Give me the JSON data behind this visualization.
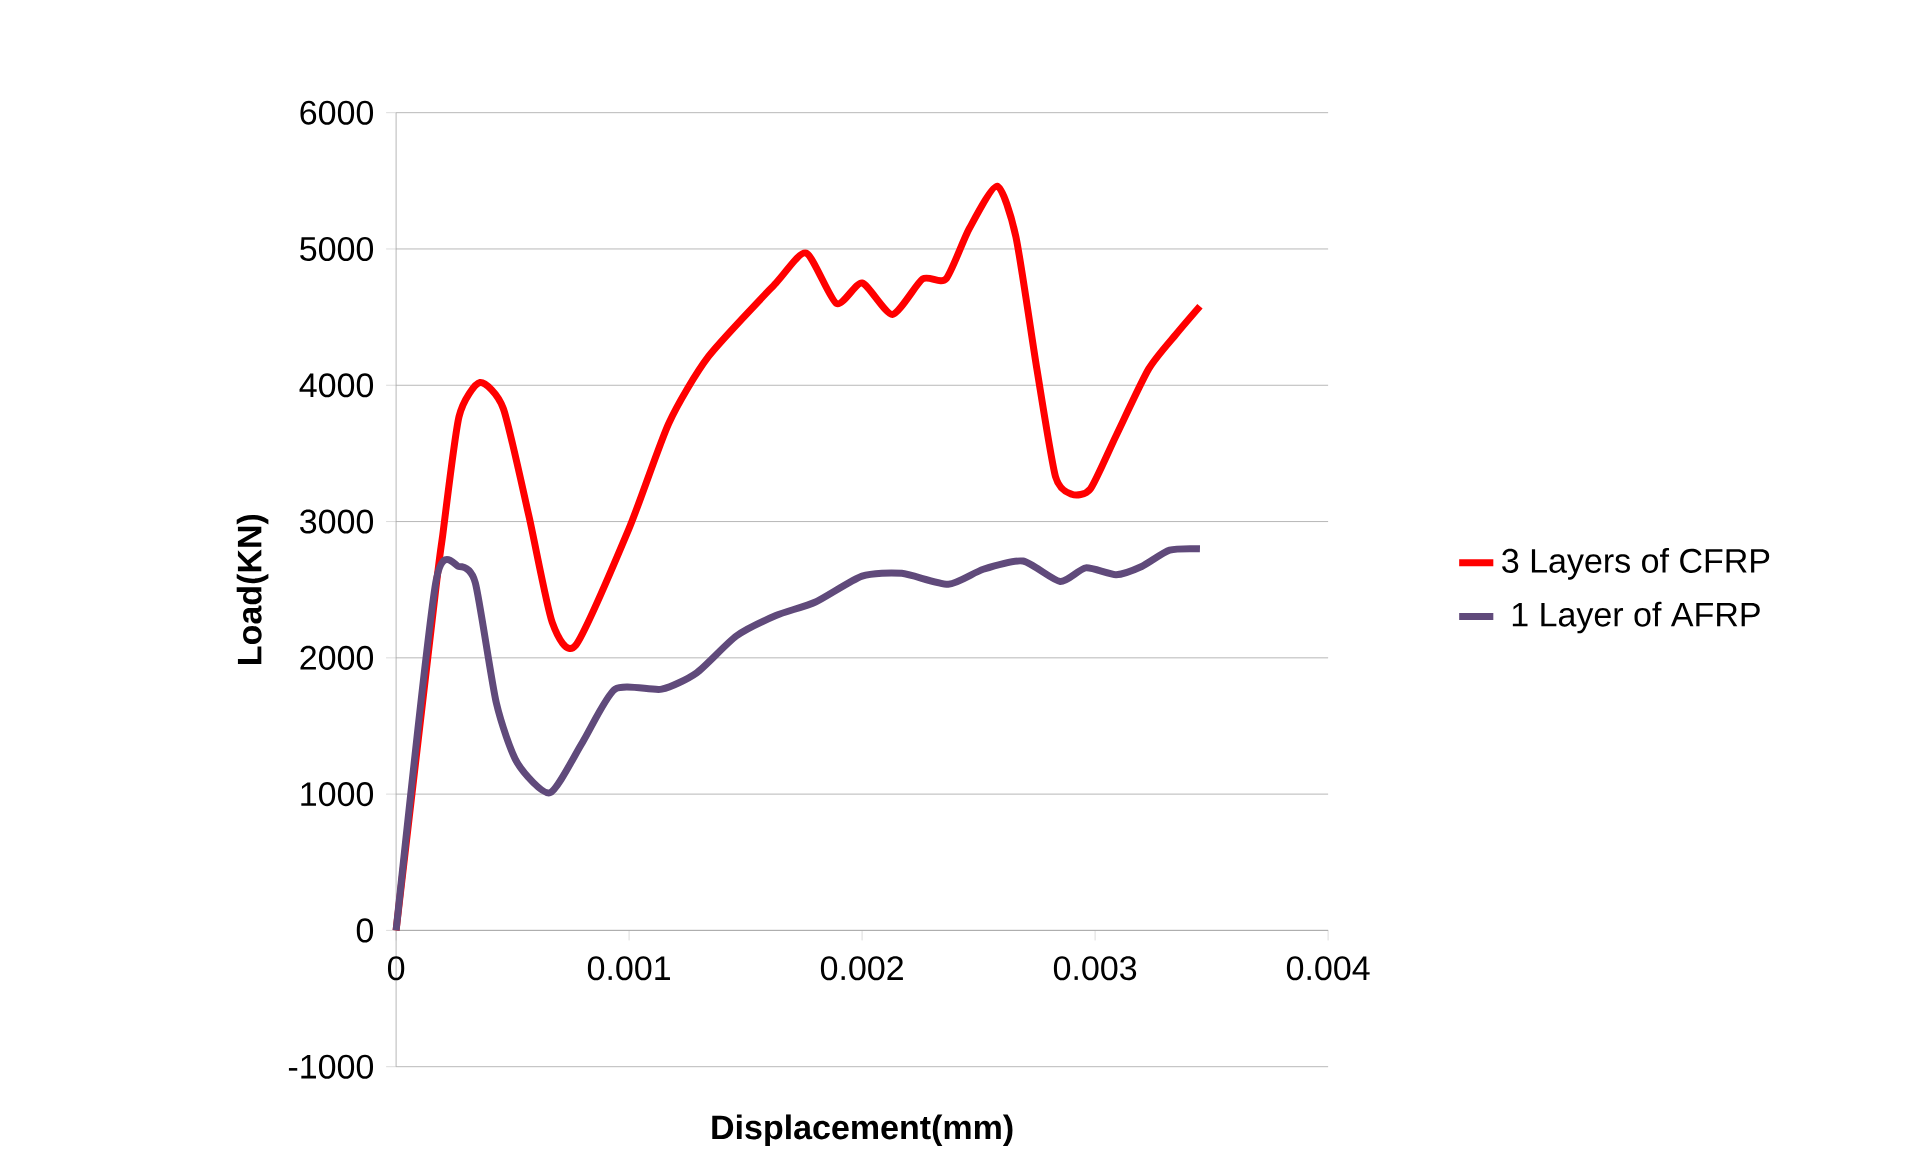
{
  "chart_data": {
    "type": "line",
    "xlabel": "Displacement(mm)",
    "ylabel": "Load(KN)",
    "xlim": [
      0,
      0.004
    ],
    "xticks": [
      0,
      0.001,
      0.002,
      0.003,
      0.004
    ],
    "ylim": [
      -1000,
      6000
    ],
    "yticks": [
      -1000,
      0,
      1000,
      2000,
      3000,
      4000,
      5000,
      6000
    ],
    "grid": "y",
    "legend": "right",
    "line_style": "solid",
    "series": [
      {
        "name": "3 Layers of CFRP",
        "color": "#ff0000",
        "x": [
          0,
          0.00017,
          0.0002,
          0.00027,
          0.00036,
          0.00046,
          0.00057,
          0.00067,
          0.00077,
          0.001,
          0.00117,
          0.00134,
          0.00163,
          0.00176,
          0.00189,
          0.002,
          0.00213,
          0.00226,
          0.00236,
          0.00246,
          0.00258,
          0.00266,
          0.00275,
          0.00283,
          0.0029,
          0.00298,
          0.00309,
          0.00323,
          0.00335,
          0.00345
        ],
        "values": [
          0,
          2500,
          2900,
          3770,
          4020,
          3830,
          3040,
          2260,
          2090,
          2950,
          3720,
          4210,
          4750,
          4970,
          4600,
          4750,
          4520,
          4780,
          4780,
          5150,
          5460,
          5090,
          4120,
          3330,
          3200,
          3240,
          3630,
          4120,
          4380,
          4580
        ]
      },
      {
        "name": "1 Layer of AFRP",
        "color": "#604a7b",
        "x": [
          0,
          0.00017,
          0.00027,
          0.00034,
          0.00043,
          0.00052,
          0.00066,
          0.0008,
          0.00094,
          0.00114,
          0.00129,
          0.00146,
          0.00163,
          0.0018,
          0.002,
          0.00217,
          0.00237,
          0.00252,
          0.00269,
          0.00285,
          0.00296,
          0.00309,
          0.0032,
          0.00332,
          0.00345
        ],
        "values": [
          0,
          2550,
          2670,
          2550,
          1670,
          1230,
          1010,
          1380,
          1770,
          1770,
          1890,
          2160,
          2310,
          2410,
          2600,
          2620,
          2540,
          2650,
          2710,
          2560,
          2660,
          2610,
          2670,
          2790,
          2800
        ]
      }
    ]
  }
}
